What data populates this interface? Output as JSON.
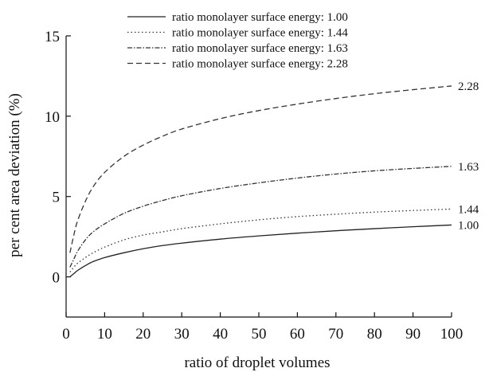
{
  "chart_data": {
    "type": "line",
    "xlabel": "ratio of droplet volumes",
    "ylabel": "per cent area deviation (%)",
    "xlim": [
      0,
      100
    ],
    "ylim": [
      -2.5,
      15
    ],
    "xticks": [
      0,
      10,
      20,
      30,
      40,
      50,
      60,
      70,
      80,
      90,
      100
    ],
    "yticks": [
      0,
      5,
      10,
      15
    ],
    "grid": false,
    "legend_position": "top-center",
    "series": [
      {
        "name": "ratio monolayer surface energy: 1.00",
        "end_label": "1.00",
        "dash": "solid",
        "color": "#222222",
        "x": [
          1,
          2,
          3,
          5,
          7,
          10,
          15,
          20,
          25,
          30,
          40,
          50,
          60,
          70,
          80,
          90,
          100
        ],
        "y": [
          0.0,
          0.2,
          0.4,
          0.7,
          0.95,
          1.2,
          1.5,
          1.75,
          1.95,
          2.1,
          2.35,
          2.55,
          2.72,
          2.87,
          3.0,
          3.12,
          3.23
        ]
      },
      {
        "name": "ratio monolayer surface energy: 1.44",
        "end_label": "1.44",
        "dash": "dotted",
        "color": "#333333",
        "x": [
          1,
          2,
          3,
          5,
          7,
          10,
          15,
          20,
          25,
          30,
          40,
          50,
          60,
          70,
          80,
          90,
          100
        ],
        "y": [
          0.3,
          0.6,
          0.85,
          1.2,
          1.5,
          1.85,
          2.3,
          2.6,
          2.8,
          3.0,
          3.3,
          3.55,
          3.75,
          3.9,
          4.03,
          4.13,
          4.22
        ]
      },
      {
        "name": "ratio monolayer surface energy: 1.63",
        "end_label": "1.63",
        "dash": "dashdot",
        "color": "#333333",
        "x": [
          1,
          2,
          3,
          5,
          7,
          10,
          15,
          20,
          25,
          30,
          40,
          50,
          60,
          70,
          80,
          90,
          100
        ],
        "y": [
          0.6,
          1.1,
          1.6,
          2.3,
          2.8,
          3.3,
          3.95,
          4.4,
          4.75,
          5.05,
          5.5,
          5.85,
          6.15,
          6.4,
          6.6,
          6.75,
          6.88
        ]
      },
      {
        "name": "ratio monolayer surface energy: 2.28",
        "end_label": "2.28",
        "dash": "dashed",
        "color": "#333333",
        "x": [
          1,
          2,
          3,
          5,
          7,
          10,
          15,
          20,
          25,
          30,
          40,
          50,
          60,
          70,
          80,
          90,
          100
        ],
        "y": [
          1.5,
          2.6,
          3.5,
          4.7,
          5.6,
          6.5,
          7.5,
          8.2,
          8.75,
          9.2,
          9.85,
          10.35,
          10.75,
          11.1,
          11.4,
          11.65,
          11.88
        ]
      }
    ]
  }
}
